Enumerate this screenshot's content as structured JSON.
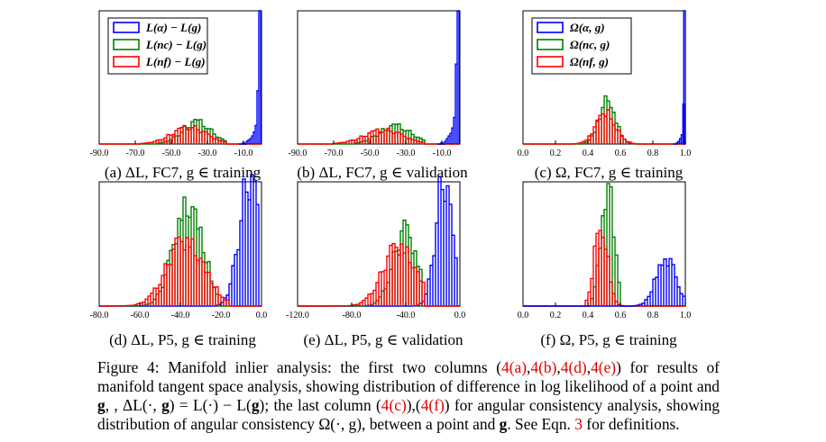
{
  "colors": {
    "alpha": "#0000ff",
    "nc": "#008000",
    "nf": "#ff0000"
  },
  "chart_data": [
    {
      "id": "a",
      "type": "histogram",
      "xlim": [
        -90,
        0
      ],
      "xticks": [
        -90,
        -70,
        -50,
        -30,
        -10
      ],
      "legend": [
        "L(α) − L(g)",
        "L(n_c) − L(g)",
        "L(n_f) − L(g)"
      ],
      "legend_position": "top-left",
      "series": [
        {
          "key": "alpha",
          "centers": [
            -12,
            -10,
            -8,
            -7,
            -6,
            -5,
            -4,
            -3,
            -2,
            -1
          ],
          "values": [
            0,
            1,
            2,
            3,
            4,
            6,
            9,
            14,
            40,
            100
          ],
          "width": 1
        }
      ],
      "bumps": [
        {
          "key": "nc",
          "mu": -36,
          "sigma": 8,
          "peak": 16,
          "lo": -58,
          "hi": -20
        },
        {
          "key": "nf",
          "mu": -40,
          "sigma": 10,
          "peak": 12,
          "lo": -68,
          "hi": -20
        }
      ],
      "caption": "(a) ΔL, FC7, g ∈ training"
    },
    {
      "id": "b",
      "type": "histogram",
      "xlim": [
        -90,
        0
      ],
      "xticks": [
        -90,
        -70,
        -50,
        -30,
        -10
      ],
      "legend_position": "none",
      "series": [
        {
          "key": "alpha",
          "centers": [
            -12,
            -10,
            -8,
            -7,
            -6,
            -5,
            -4,
            -3,
            -2,
            -1
          ],
          "values": [
            0,
            1,
            2,
            4,
            6,
            8,
            12,
            20,
            60,
            100
          ],
          "width": 1
        }
      ],
      "bumps": [
        {
          "key": "nc",
          "mu": -36,
          "sigma": 9,
          "peak": 13,
          "lo": -58,
          "hi": -20
        },
        {
          "key": "nf",
          "mu": -42,
          "sigma": 11,
          "peak": 10,
          "lo": -70,
          "hi": -20
        }
      ],
      "caption": "(b) ΔL, FC7, g ∈ validation"
    },
    {
      "id": "c",
      "type": "histogram",
      "xlim": [
        0,
        1
      ],
      "xticks": [
        0.0,
        0.2,
        0.4,
        0.6,
        0.8,
        1.0
      ],
      "legend": [
        "Ω(α, g)",
        "Ω(n_c, g)",
        "Ω(n_f, g)"
      ],
      "legend_position": "top-left",
      "series": [
        {
          "key": "alpha",
          "centers": [
            0.93,
            0.95,
            0.96,
            0.97,
            0.98,
            0.99,
            0.995
          ],
          "values": [
            0,
            1,
            2,
            4,
            7,
            30,
            100
          ],
          "width": 0.01
        }
      ],
      "bumps": [
        {
          "key": "nc",
          "mu": 0.52,
          "sigma": 0.05,
          "peak": 34,
          "lo": 0.36,
          "hi": 0.68
        },
        {
          "key": "nf",
          "mu": 0.51,
          "sigma": 0.06,
          "peak": 24,
          "lo": 0.3,
          "hi": 0.7
        }
      ],
      "caption": "(c) Ω, FC7, g ∈ training"
    },
    {
      "id": "d",
      "type": "histogram",
      "xlim": [
        -80,
        0
      ],
      "xticks": [
        -80,
        -60,
        -40,
        -20,
        0
      ],
      "legend_position": "none",
      "series": [],
      "bumps": [
        {
          "key": "alpha",
          "mu": -6,
          "sigma": 5,
          "peak": 100,
          "lo": -22,
          "hi": -1
        },
        {
          "key": "nc",
          "mu": -36,
          "sigma": 7,
          "peak": 88,
          "lo": -78,
          "hi": -22
        },
        {
          "key": "nf",
          "mu": -37,
          "sigma": 9,
          "peak": 55,
          "lo": -75,
          "hi": -16
        }
      ],
      "caption": "(d) ΔL, P5, g ∈ training"
    },
    {
      "id": "e",
      "type": "histogram",
      "xlim": [
        -120,
        0
      ],
      "xticks": [
        -120,
        -80,
        -40,
        0
      ],
      "legend_position": "none",
      "series": [],
      "bumps": [
        {
          "key": "alpha",
          "mu": -12,
          "sigma": 6,
          "peak": 100,
          "lo": -36,
          "hi": -2
        },
        {
          "key": "nc",
          "mu": -40,
          "sigma": 9,
          "peak": 60,
          "lo": -90,
          "hi": -28
        },
        {
          "key": "nf",
          "mu": -44,
          "sigma": 12,
          "peak": 50,
          "lo": -100,
          "hi": -26
        }
      ],
      "caption": "(e) ΔL, P5, g ∈ validation"
    },
    {
      "id": "f",
      "type": "histogram",
      "xlim": [
        0,
        1
      ],
      "xticks": [
        0.0,
        0.2,
        0.4,
        0.6,
        0.8,
        1.0
      ],
      "legend_position": "none",
      "series": [],
      "bumps": [
        {
          "key": "nc",
          "mu": 0.52,
          "sigma": 0.04,
          "peak": 100,
          "lo": 0.42,
          "hi": 0.6
        },
        {
          "key": "nf",
          "mu": 0.48,
          "sigma": 0.04,
          "peak": 66,
          "lo": 0.38,
          "hi": 0.62
        },
        {
          "key": "alpha",
          "mu": 0.88,
          "sigma": 0.06,
          "peak": 40,
          "lo": 0.68,
          "hi": 1.0
        }
      ],
      "caption": "(f) Ω, P5, g ∈ training"
    }
  ],
  "figure_caption": {
    "lead": "Figure 4: Manifold inlier analysis: the first two columns (",
    "refs_first": [
      "4(a)",
      "4(b)",
      "4(d)",
      "4(e)"
    ],
    "mid1": ") for results of manifold tangent space analysis, showing distribution of difference in log likelihood of a point and ",
    "g": "g",
    "mid2": ", ΔL(·, ",
    "mid3": ") = L(·) − L(",
    "mid4": "); the last column (",
    "ref_c": "4(c)",
    "sep": "),(",
    "ref_f": "4(f)",
    "mid5": ") for angular consistency analysis, showing distribution of angular consistency Ω(·, g), between a point and ",
    "mid6": ". See Eqn. ",
    "ref_eqn": "3",
    "tail": " for definitions."
  }
}
